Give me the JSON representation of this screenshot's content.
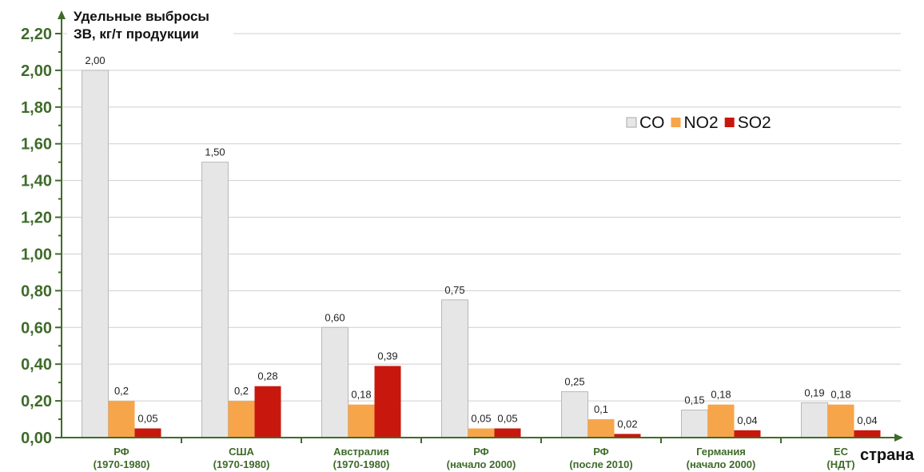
{
  "chart_data": {
    "type": "bar",
    "ylabel_lines": [
      "Удельные выбросы",
      "ЗВ, кг/т продукции"
    ],
    "xlabel": "страна",
    "ylim": [
      0,
      2.2
    ],
    "y_ticks": [
      "0,00",
      "0,20",
      "0,40",
      "0,60",
      "0,80",
      "1,00",
      "1,20",
      "1,40",
      "1,60",
      "1,80",
      "2,00",
      "2,20"
    ],
    "grid": true,
    "legend_position": "top-right",
    "categories": [
      {
        "line1": "РФ",
        "line2": "(1970-1980)"
      },
      {
        "line1": "США",
        "line2": "(1970-1980)"
      },
      {
        "line1": "Австралия",
        "line2": "(1970-1980)"
      },
      {
        "line1": "РФ",
        "line2": "(начало 2000)"
      },
      {
        "line1": "РФ",
        "line2": "(после 2010)"
      },
      {
        "line1": "Германия",
        "line2": "(начало 2000)"
      },
      {
        "line1": "ЕС",
        "line2": "(НДТ)"
      }
    ],
    "series": [
      {
        "name": "CO",
        "color": "#e6e6e6",
        "values": [
          2.0,
          1.5,
          0.6,
          0.75,
          0.25,
          0.15,
          0.19
        ],
        "labels": [
          "2,00",
          "1,50",
          "0,60",
          "0,75",
          "0,25",
          "0,15",
          "0,19"
        ]
      },
      {
        "name": "NO2",
        "color": "#f7a54a",
        "values": [
          0.2,
          0.2,
          0.18,
          0.05,
          0.1,
          0.18,
          0.18
        ],
        "labels": [
          "0,2",
          "0,2",
          "0,18",
          "0,05",
          "0,1",
          "0,18",
          "0,18"
        ]
      },
      {
        "name": "SO2",
        "color": "#c8180e",
        "values": [
          0.05,
          0.28,
          0.39,
          0.05,
          0.02,
          0.04,
          0.04
        ],
        "labels": [
          "0,05",
          "0,28",
          "0,39",
          "0,05",
          "0,02",
          "0,04",
          "0,04"
        ]
      }
    ]
  }
}
